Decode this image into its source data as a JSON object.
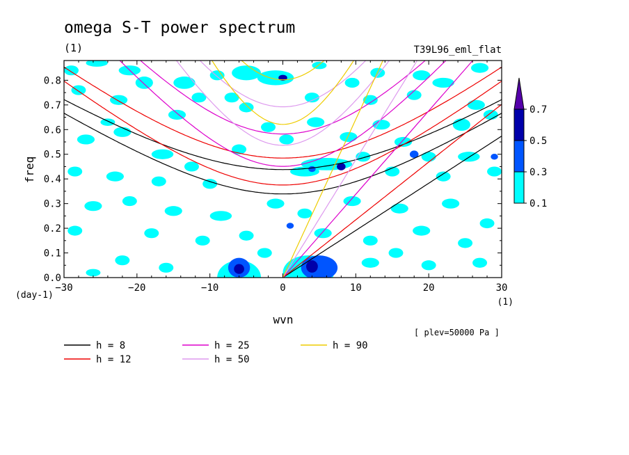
{
  "chart_data": {
    "type": "heatmap",
    "title": "omega S-T power spectrum",
    "units_label": "(1)",
    "run_label": "T39L96_eml_flat",
    "xlabel": "wvn",
    "x_units": "(1)",
    "ylabel": "freq",
    "y_units": "(day-1)",
    "note": "[ plev=50000 Pa ]",
    "xlim": [
      -30,
      30
    ],
    "ylim": [
      0,
      0.88
    ],
    "x_ticks": [
      -30,
      -20,
      -10,
      0,
      10,
      20,
      30
    ],
    "y_ticks": [
      0.0,
      0.1,
      0.2,
      0.3,
      0.4,
      0.5,
      0.6,
      0.7,
      0.8
    ],
    "y_tick_labels": [
      "0.0",
      "0.1",
      "0.2",
      "0.3",
      "0.4",
      "0.5",
      "0.6",
      "0.7",
      "0.8"
    ],
    "colorbar": {
      "levels": [
        "0.1",
        "0.3",
        "0.5",
        "0.7"
      ],
      "colors": [
        "#00ffff",
        "#0055ff",
        "#0000aa",
        "#5500aa"
      ]
    },
    "contour_patches": [
      {
        "x": -6.0,
        "y": 0.035,
        "rx": 0.7,
        "ry": 0.02,
        "level": 2
      },
      {
        "x": 4.0,
        "y": 0.045,
        "rx": 0.8,
        "ry": 0.025,
        "level": 2
      },
      {
        "x": 0.0,
        "y": 0.81,
        "rx": 0.6,
        "ry": 0.012,
        "level": 2
      },
      {
        "x": 8.0,
        "y": 0.45,
        "rx": 0.6,
        "ry": 0.015,
        "level": 2
      },
      {
        "x": 4.0,
        "y": 0.44,
        "rx": 0.5,
        "ry": 0.012,
        "level": 1
      },
      {
        "x": 5.0,
        "y": 0.04,
        "rx": 2.5,
        "ry": 0.05,
        "level": 1
      },
      {
        "x": -6.0,
        "y": 0.04,
        "rx": 1.5,
        "ry": 0.04,
        "level": 1
      },
      {
        "x": 18.0,
        "y": 0.5,
        "rx": 0.6,
        "ry": 0.015,
        "level": 1
      },
      {
        "x": 29.0,
        "y": 0.49,
        "rx": 0.5,
        "ry": 0.012,
        "level": 1
      },
      {
        "x": 1.0,
        "y": 0.21,
        "rx": 0.5,
        "ry": 0.012,
        "level": 1
      },
      {
        "x": -6.0,
        "y": 0.0,
        "rx": 3.0,
        "ry": 0.07,
        "level": 0
      },
      {
        "x": 3.5,
        "y": 0.02,
        "rx": 3.5,
        "ry": 0.07,
        "level": 0
      },
      {
        "x": -1.0,
        "y": 0.81,
        "rx": 2.5,
        "ry": 0.03,
        "level": 0
      },
      {
        "x": -5.0,
        "y": 0.83,
        "rx": 2.0,
        "ry": 0.03,
        "level": 0
      },
      {
        "x": 6.0,
        "y": 0.46,
        "rx": 3.5,
        "ry": 0.025,
        "level": 0
      },
      {
        "x": 3.0,
        "y": 0.43,
        "rx": 2.0,
        "ry": 0.02,
        "level": 0
      },
      {
        "x": -29.0,
        "y": 0.84,
        "rx": 1.0,
        "ry": 0.02,
        "level": 0
      },
      {
        "x": -25.5,
        "y": 0.87,
        "rx": 1.5,
        "ry": 0.015,
        "level": 0
      },
      {
        "x": -21.0,
        "y": 0.84,
        "rx": 1.5,
        "ry": 0.02,
        "level": 0
      },
      {
        "x": -28.0,
        "y": 0.76,
        "rx": 1.0,
        "ry": 0.02,
        "level": 0
      },
      {
        "x": -22.5,
        "y": 0.72,
        "rx": 1.2,
        "ry": 0.02,
        "level": 0
      },
      {
        "x": -19.0,
        "y": 0.79,
        "rx": 1.2,
        "ry": 0.025,
        "level": 0
      },
      {
        "x": -24.0,
        "y": 0.63,
        "rx": 1.0,
        "ry": 0.015,
        "level": 0
      },
      {
        "x": -13.5,
        "y": 0.79,
        "rx": 1.5,
        "ry": 0.025,
        "level": 0
      },
      {
        "x": -11.5,
        "y": 0.73,
        "rx": 1.0,
        "ry": 0.02,
        "level": 0
      },
      {
        "x": -14.5,
        "y": 0.66,
        "rx": 1.2,
        "ry": 0.02,
        "level": 0
      },
      {
        "x": -9.0,
        "y": 0.82,
        "rx": 1.0,
        "ry": 0.02,
        "level": 0
      },
      {
        "x": -7.0,
        "y": 0.73,
        "rx": 1.0,
        "ry": 0.02,
        "level": 0
      },
      {
        "x": -5.0,
        "y": 0.69,
        "rx": 1.0,
        "ry": 0.02,
        "level": 0
      },
      {
        "x": 4.0,
        "y": 0.73,
        "rx": 1.0,
        "ry": 0.02,
        "level": 0
      },
      {
        "x": 5.0,
        "y": 0.86,
        "rx": 1.0,
        "ry": 0.015,
        "level": 0
      },
      {
        "x": 9.5,
        "y": 0.79,
        "rx": 1.0,
        "ry": 0.02,
        "level": 0
      },
      {
        "x": 12.0,
        "y": 0.72,
        "rx": 1.0,
        "ry": 0.02,
        "level": 0
      },
      {
        "x": 13.0,
        "y": 0.83,
        "rx": 1.0,
        "ry": 0.02,
        "level": 0
      },
      {
        "x": 19.0,
        "y": 0.82,
        "rx": 1.2,
        "ry": 0.02,
        "level": 0
      },
      {
        "x": 18.0,
        "y": 0.74,
        "rx": 1.0,
        "ry": 0.02,
        "level": 0
      },
      {
        "x": 22.0,
        "y": 0.79,
        "rx": 1.5,
        "ry": 0.02,
        "level": 0
      },
      {
        "x": 26.5,
        "y": 0.7,
        "rx": 1.2,
        "ry": 0.02,
        "level": 0
      },
      {
        "x": 24.5,
        "y": 0.62,
        "rx": 1.2,
        "ry": 0.025,
        "level": 0
      },
      {
        "x": 28.5,
        "y": 0.66,
        "rx": 1.0,
        "ry": 0.02,
        "level": 0
      },
      {
        "x": 27.0,
        "y": 0.85,
        "rx": 1.2,
        "ry": 0.02,
        "level": 0
      },
      {
        "x": -27.0,
        "y": 0.56,
        "rx": 1.2,
        "ry": 0.02,
        "level": 0
      },
      {
        "x": -22.0,
        "y": 0.59,
        "rx": 1.2,
        "ry": 0.02,
        "level": 0
      },
      {
        "x": -16.5,
        "y": 0.5,
        "rx": 1.5,
        "ry": 0.02,
        "level": 0
      },
      {
        "x": -28.5,
        "y": 0.43,
        "rx": 1.0,
        "ry": 0.02,
        "level": 0
      },
      {
        "x": -23.0,
        "y": 0.41,
        "rx": 1.2,
        "ry": 0.02,
        "level": 0
      },
      {
        "x": -17.0,
        "y": 0.39,
        "rx": 1.0,
        "ry": 0.02,
        "level": 0
      },
      {
        "x": -10.0,
        "y": 0.38,
        "rx": 1.0,
        "ry": 0.02,
        "level": 0
      },
      {
        "x": -12.5,
        "y": 0.45,
        "rx": 1.0,
        "ry": 0.02,
        "level": 0
      },
      {
        "x": -6.0,
        "y": 0.52,
        "rx": 1.0,
        "ry": 0.02,
        "level": 0
      },
      {
        "x": -2.0,
        "y": 0.61,
        "rx": 1.0,
        "ry": 0.02,
        "level": 0
      },
      {
        "x": 0.5,
        "y": 0.56,
        "rx": 1.0,
        "ry": 0.02,
        "level": 0
      },
      {
        "x": 4.5,
        "y": 0.63,
        "rx": 1.2,
        "ry": 0.02,
        "level": 0
      },
      {
        "x": 9.0,
        "y": 0.57,
        "rx": 1.2,
        "ry": 0.02,
        "level": 0
      },
      {
        "x": 13.5,
        "y": 0.62,
        "rx": 1.2,
        "ry": 0.02,
        "level": 0
      },
      {
        "x": 16.5,
        "y": 0.55,
        "rx": 1.2,
        "ry": 0.02,
        "level": 0
      },
      {
        "x": 20.0,
        "y": 0.49,
        "rx": 1.0,
        "ry": 0.02,
        "level": 0
      },
      {
        "x": 25.5,
        "y": 0.49,
        "rx": 1.5,
        "ry": 0.02,
        "level": 0
      },
      {
        "x": 29.0,
        "y": 0.43,
        "rx": 1.0,
        "ry": 0.02,
        "level": 0
      },
      {
        "x": 22.0,
        "y": 0.41,
        "rx": 1.0,
        "ry": 0.02,
        "level": 0
      },
      {
        "x": 15.0,
        "y": 0.43,
        "rx": 1.0,
        "ry": 0.02,
        "level": 0
      },
      {
        "x": 11.0,
        "y": 0.49,
        "rx": 1.0,
        "ry": 0.02,
        "level": 0
      },
      {
        "x": -26.0,
        "y": 0.29,
        "rx": 1.2,
        "ry": 0.02,
        "level": 0
      },
      {
        "x": -21.0,
        "y": 0.31,
        "rx": 1.0,
        "ry": 0.02,
        "level": 0
      },
      {
        "x": -15.0,
        "y": 0.27,
        "rx": 1.2,
        "ry": 0.02,
        "level": 0
      },
      {
        "x": -8.5,
        "y": 0.25,
        "rx": 1.5,
        "ry": 0.02,
        "level": 0
      },
      {
        "x": -1.0,
        "y": 0.3,
        "rx": 1.2,
        "ry": 0.02,
        "level": 0
      },
      {
        "x": 3.0,
        "y": 0.26,
        "rx": 1.0,
        "ry": 0.02,
        "level": 0
      },
      {
        "x": 9.5,
        "y": 0.31,
        "rx": 1.2,
        "ry": 0.02,
        "level": 0
      },
      {
        "x": 16.0,
        "y": 0.28,
        "rx": 1.2,
        "ry": 0.02,
        "level": 0
      },
      {
        "x": 23.0,
        "y": 0.3,
        "rx": 1.2,
        "ry": 0.02,
        "level": 0
      },
      {
        "x": 28.0,
        "y": 0.22,
        "rx": 1.0,
        "ry": 0.02,
        "level": 0
      },
      {
        "x": -28.5,
        "y": 0.19,
        "rx": 1.0,
        "ry": 0.02,
        "level": 0
      },
      {
        "x": -18.0,
        "y": 0.18,
        "rx": 1.0,
        "ry": 0.02,
        "level": 0
      },
      {
        "x": -11.0,
        "y": 0.15,
        "rx": 1.0,
        "ry": 0.02,
        "level": 0
      },
      {
        "x": -5.0,
        "y": 0.17,
        "rx": 1.0,
        "ry": 0.02,
        "level": 0
      },
      {
        "x": 5.5,
        "y": 0.18,
        "rx": 1.2,
        "ry": 0.02,
        "level": 0
      },
      {
        "x": 12.0,
        "y": 0.15,
        "rx": 1.0,
        "ry": 0.02,
        "level": 0
      },
      {
        "x": 19.0,
        "y": 0.19,
        "rx": 1.2,
        "ry": 0.02,
        "level": 0
      },
      {
        "x": 25.0,
        "y": 0.14,
        "rx": 1.0,
        "ry": 0.02,
        "level": 0
      },
      {
        "x": -22.0,
        "y": 0.07,
        "rx": 1.0,
        "ry": 0.02,
        "level": 0
      },
      {
        "x": -16.0,
        "y": 0.04,
        "rx": 1.0,
        "ry": 0.02,
        "level": 0
      },
      {
        "x": 12.0,
        "y": 0.06,
        "rx": 1.2,
        "ry": 0.02,
        "level": 0
      },
      {
        "x": 20.0,
        "y": 0.05,
        "rx": 1.0,
        "ry": 0.02,
        "level": 0
      },
      {
        "x": 27.0,
        "y": 0.06,
        "rx": 1.0,
        "ry": 0.02,
        "level": 0
      },
      {
        "x": -26.0,
        "y": 0.02,
        "rx": 1.0,
        "ry": 0.015,
        "level": 0
      },
      {
        "x": 15.5,
        "y": 0.1,
        "rx": 1.0,
        "ry": 0.02,
        "level": 0
      },
      {
        "x": -2.5,
        "y": 0.1,
        "rx": 1.0,
        "ry": 0.02,
        "level": 0
      }
    ],
    "curves": [
      {
        "name": "h = 8",
        "h": 8,
        "color": "#000000"
      },
      {
        "name": "h = 12",
        "h": 12,
        "color": "#ee0000"
      },
      {
        "name": "h = 25",
        "h": 25,
        "color": "#dd00cc"
      },
      {
        "name": "h = 50",
        "h": 50,
        "color": "#dd99ee"
      },
      {
        "name": "h = 90",
        "h": 90,
        "color": "#eecc00"
      }
    ]
  }
}
